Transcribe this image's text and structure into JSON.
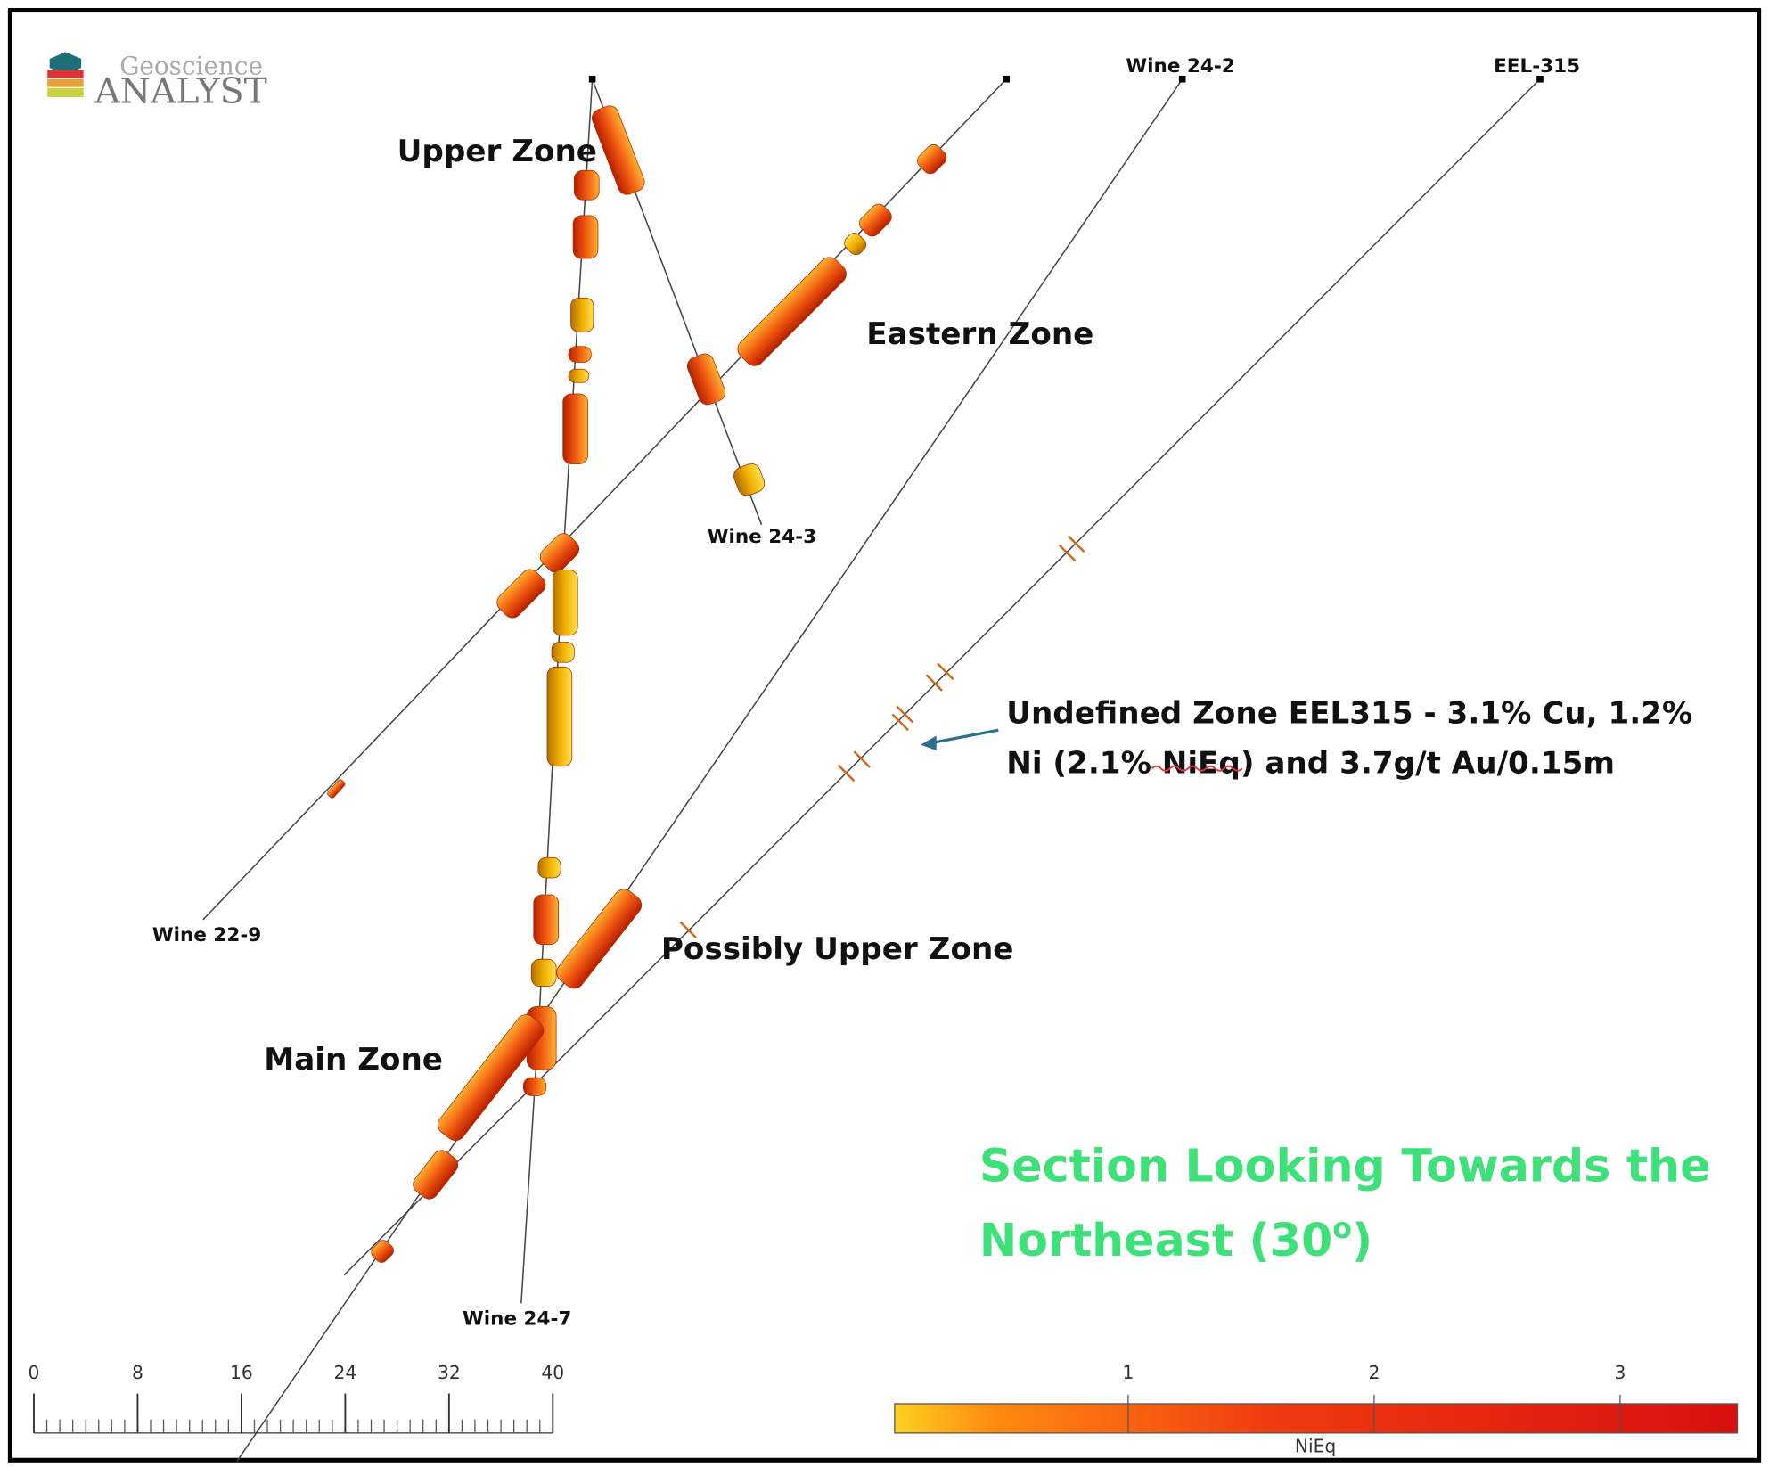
{
  "logo": {
    "top": "Geoscience",
    "bottom": "ANALYST"
  },
  "holes": [
    "Wine 24-2",
    "EEL-315",
    "Wine 24-3",
    "Wine 22-9",
    "Wine 24-7"
  ],
  "zones": [
    "Upper Zone",
    "Eastern Zone",
    "Possibly Upper Zone",
    "Main Zone"
  ],
  "annotation": {
    "lines": [
      "Undefined Zone EEL315 - 3.1% Cu, 1.2%",
      "Ni (2.1% NiEq) and 3.7g/t Au/0.15m"
    ]
  },
  "title": {
    "line1": "Section Looking Towards the",
    "line2": "Northeast (30",
    "superscript": "o",
    "close": ")"
  },
  "scale_bar": {
    "ticks": [
      0,
      8,
      16,
      24,
      32,
      40
    ]
  },
  "color_bar": {
    "ticks": [
      1,
      2,
      3
    ],
    "label": "NiEq"
  }
}
